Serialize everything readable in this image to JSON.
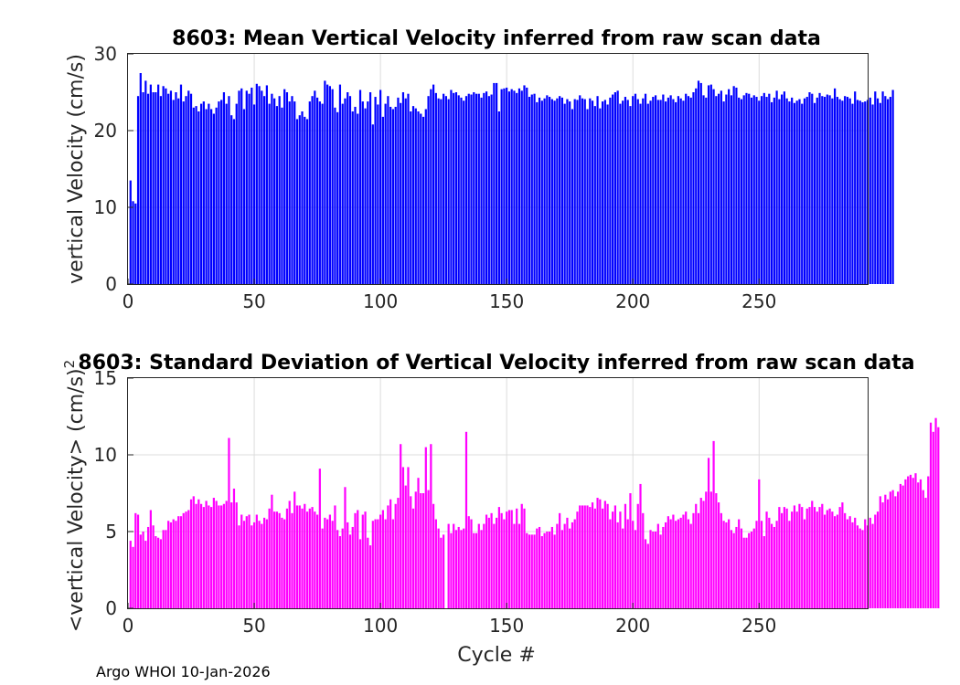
{
  "chart_data": [
    {
      "type": "bar",
      "title": "8603: Mean Vertical Velocity inferred from raw scan data",
      "xlabel": "",
      "ylabel": "vertical Velocity (cm/s)",
      "xlim": [
        0,
        293
      ],
      "ylim": [
        0,
        30
      ],
      "xticks": [
        0,
        50,
        100,
        150,
        200,
        250
      ],
      "yticks": [
        0,
        10,
        20,
        30
      ],
      "grid": true,
      "color": "#0000ff",
      "x_start": 1,
      "values": [
        13.5,
        10.8,
        10.5,
        24.5,
        27.5,
        25,
        26.5,
        24.8,
        26,
        25,
        25,
        26,
        24.5,
        25.8,
        25.5,
        24.8,
        25.2,
        24,
        25,
        24.2,
        26,
        23.8,
        24.5,
        25.2,
        24.8,
        23,
        23.2,
        22.5,
        23.5,
        23.8,
        22.8,
        23.5,
        22.8,
        22.2,
        23,
        23.8,
        24,
        25,
        23.5,
        24.5,
        22,
        21.5,
        23.5,
        25.2,
        25.5,
        22.8,
        25.2,
        24.8,
        25.6,
        23.4,
        26.1,
        25.8,
        25.2,
        24.5,
        25.9,
        23.5,
        24.8,
        24.2,
        23.2,
        24.5,
        23,
        25.4,
        25,
        23.8,
        24.5,
        23.8,
        21.5,
        22,
        22.5,
        21.8,
        21.5,
        23.8,
        24.5,
        25.2,
        24.3,
        23.8,
        23.5,
        26.5,
        26,
        25.8,
        25.4,
        23,
        22.4,
        26,
        23.5,
        24.2,
        25,
        24.5,
        22.5,
        23.1,
        22.2,
        25.3,
        23.8,
        22.9,
        23.8,
        25,
        20.8,
        24.4,
        23.4,
        25.3,
        21.8,
        23.5,
        24.5,
        23.1,
        22.8,
        23.1,
        24.3,
        23.6,
        25,
        24.2,
        24.8,
        22.5,
        23.2,
        22.9,
        22.5,
        22.2,
        21.8,
        22.8,
        24.5,
        25.4,
        26,
        24.9,
        24.2,
        24.1,
        24.8,
        24.5,
        24.1,
        25.3,
        24.9,
        25,
        24.6,
        24.3,
        23.9,
        24.5,
        24.8,
        24.7,
        25,
        24.8,
        24.8,
        24.3,
        24.9,
        25.1,
        24.5,
        24.7,
        26.2,
        26.2,
        22.5,
        25.4,
        25.5,
        25.6,
        25.1,
        25.4,
        25.2,
        24.9,
        25.5,
        25.2,
        25.9,
        25.6,
        24.4,
        24.7,
        24.8,
        23.7,
        24.3,
        23.9,
        24.2,
        24.6,
        24.4,
        24.1,
        23.9,
        24.2,
        24.5,
        24.3,
        23.5,
        24.1,
        23.8,
        22.8,
        24.1,
        24,
        24.6,
        24.2,
        24.1,
        22.8,
        24.2,
        23.9,
        23.2,
        24.5,
        22.9,
        23.8,
        24,
        23.4,
        24.3,
        24.7,
        25,
        25.2,
        23.5,
        23.9,
        24.4,
        24,
        23.2,
        24.5,
        24.8,
        24.1,
        23.5,
        24.2,
        24.8,
        23.5,
        23.9,
        24.4,
        24.6,
        24,
        24,
        24.7,
        23.8,
        24.3,
        24.6,
        24.1,
        23.7,
        24.5,
        24.2,
        23.9,
        24.8,
        24.5,
        24.3,
        25,
        25.5,
        26.5,
        26.2,
        24.6,
        24.3,
        25.9,
        26,
        25.4,
        24.5,
        24.8,
        25.2,
        23.8,
        24.7,
        25.4,
        24.6,
        25.8,
        25.6,
        24.3,
        24.1,
        24.6,
        24.9,
        24.8,
        24.3,
        24.6,
        24.4,
        23.9,
        24.5,
        24.9,
        24.4,
        24.8,
        23.7,
        24.3,
        25.2,
        24.1,
        24.7,
        25.1,
        24.2,
        23.8,
        24.3,
        23.6,
        23.9,
        24.1,
        23.5,
        24.2,
        24.4,
        25,
        24.8,
        23.6,
        24.3,
        24.9,
        24.5,
        24.4,
        24.7,
        24.6,
        24.2,
        25.5,
        24.4,
        24.1,
        23.9,
        24.5,
        24.4,
        24.2,
        23.5,
        25.1,
        24,
        23.9,
        23.7,
        23.8,
        24,
        24.3,
        23.4,
        25.1,
        24.2,
        23.6,
        25.1,
        24.5,
        24.1,
        24.4,
        25.3
      ]
    },
    {
      "type": "bar",
      "title": "8603: Standard Deviation of Vertical Velocity inferred from raw scan data",
      "xlabel": "Cycle #",
      "ylabel": "<vertical Velocity> (cm/s)",
      "ylabel_superscript": "2",
      "xlim": [
        0,
        293
      ],
      "ylim": [
        0,
        15
      ],
      "xticks": [
        0,
        50,
        100,
        150,
        200,
        250
      ],
      "yticks": [
        0,
        5,
        10,
        15
      ],
      "grid": true,
      "color": "#ff00ff",
      "x_start": 1,
      "values": [
        4.4,
        4,
        6.2,
        6.1,
        4.8,
        5,
        4.4,
        5.3,
        6.4,
        5.4,
        4.7,
        4.6,
        4.5,
        5.1,
        5.1,
        5.7,
        5.6,
        5.8,
        5.7,
        6,
        6,
        6.2,
        6.3,
        6.4,
        7.1,
        7.3,
        6.8,
        7.1,
        6.8,
        6.6,
        7,
        6.7,
        6.6,
        7.2,
        7,
        6.7,
        6.7,
        6.8,
        7,
        11.1,
        6.9,
        7.8,
        6.9,
        5.4,
        6.1,
        5.7,
        6,
        6.1,
        5.4,
        5.6,
        6.1,
        5.7,
        5.5,
        5.9,
        5.8,
        6.5,
        7.4,
        6.3,
        6.3,
        6.2,
        5.9,
        5.8,
        6.5,
        7,
        6.2,
        7.6,
        6.7,
        6.7,
        6.5,
        6.8,
        6.3,
        6.5,
        6.6,
        6.3,
        6.1,
        9.1,
        5.2,
        5.9,
        5.8,
        6.1,
        5.7,
        6.7,
        5.1,
        4.7,
        5.2,
        7.9,
        5.6,
        4.8,
        5.3,
        6.2,
        6.4,
        4.5,
        6.1,
        6.3,
        4.6,
        4.1,
        5.7,
        5.8,
        5.8,
        6.1,
        6.4,
        5.8,
        6.7,
        7.1,
        5.8,
        6.8,
        7.2,
        10.7,
        9.2,
        8,
        9.2,
        7.3,
        6.5,
        7.6,
        8.5,
        7.5,
        7.5,
        10.5,
        7.7,
        10.7,
        6.8,
        5.8,
        5.2,
        4.6,
        4.8,
        0,
        5.5,
        4.9,
        5.5,
        5.1,
        5.3,
        5.1,
        5.2,
        11.5,
        6,
        5.8,
        4.9,
        4.9,
        5.5,
        5.1,
        5.5,
        6.1,
        5.9,
        6.2,
        5.5,
        5.9,
        6.6,
        6.2,
        5.8,
        6.3,
        6.4,
        6.4,
        5.5,
        6.5,
        5.5,
        6.8,
        6.5,
        4.9,
        4.8,
        4.8,
        4.8,
        5.2,
        5.3,
        4.7,
        4.9,
        5,
        5,
        5.3,
        4.8,
        5.5,
        6.2,
        5.1,
        5.5,
        5.9,
        5.2,
        5.6,
        5.8,
        6.3,
        6.7,
        6.7,
        6.7,
        6.7,
        6.6,
        6.9,
        6.5,
        7.2,
        7.1,
        6.5,
        7,
        6.8,
        5.8,
        6.3,
        6.7,
        5.6,
        6.3,
        5.2,
        6.8,
        5.8,
        7.5,
        5.7,
        5.1,
        6.8,
        8.1,
        6.2,
        4.5,
        4.2,
        5.1,
        5,
        5,
        5.5,
        4.8,
        5.3,
        5.6,
        6,
        5.8,
        6.1,
        5.7,
        5.8,
        5.9,
        6.1,
        6.3,
        5.8,
        5.5,
        6.2,
        6.8,
        6.2,
        7.2,
        7,
        7.6,
        9.8,
        7.6,
        10.9,
        7.5,
        6.9,
        6.2,
        5.7,
        5.6,
        5.8,
        5.1,
        4.9,
        5.3,
        5.8,
        5.2,
        4.6,
        4.6,
        4.9,
        5,
        5.2,
        5.7,
        8.4,
        5.7,
        4.7,
        6.3,
        5.9,
        5.5,
        5.3,
        5.7,
        6.6,
        6.2,
        6.6,
        6.5,
        5.7,
        6.3,
        6.7,
        6.3,
        6.8,
        6.6,
        5.8,
        6.5,
        6.6,
        7,
        6.6,
        6.3,
        6.6,
        6.8,
        6.1,
        6.4,
        6.5,
        6.3,
        6,
        6.1,
        6.6,
        6.9,
        6.2,
        5.8,
        6,
        5.6,
        5.9,
        5.4,
        5.2,
        5.1,
        5.8,
        5.4,
        5.9,
        5.5,
        6.1,
        6.3,
        7.3,
        6.9,
        7.4,
        7.1,
        7.6,
        7.7,
        7.3,
        7.6,
        8.1,
        8,
        8.4,
        8.6,
        8.7,
        8.5,
        8.8,
        8.2,
        8.4,
        7.7,
        7.2,
        8.6,
        12.1,
        11.5,
        12.4,
        11.8
      ]
    }
  ],
  "footer": "Argo WHOI 10-Jan-2026"
}
